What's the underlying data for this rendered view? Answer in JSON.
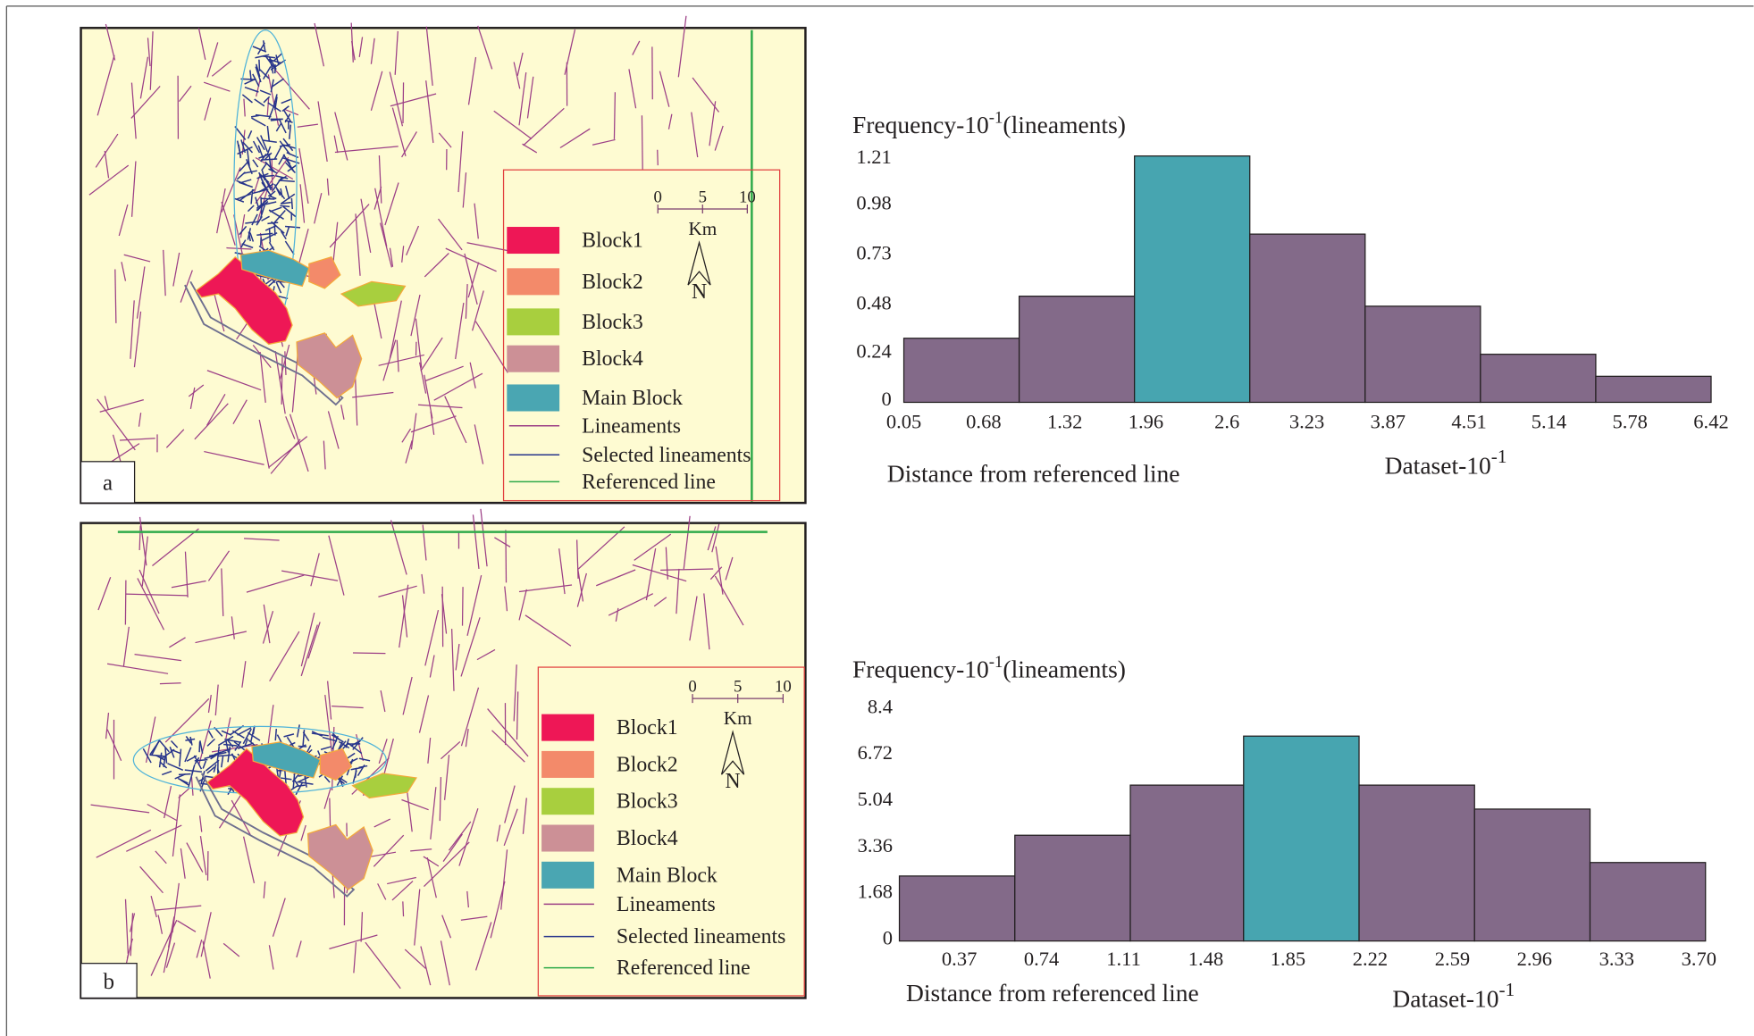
{
  "panels": [
    {
      "label": "a",
      "scale": {
        "ticks": [
          "0",
          "5",
          "10"
        ],
        "unit": "Km",
        "north": "N"
      },
      "legend": [
        "Block1",
        "Block2",
        "Block3",
        "Block4",
        "Main Block",
        "Lineaments",
        "Selected lineaments",
        "Referenced line"
      ]
    },
    {
      "label": "b",
      "scale": {
        "ticks": [
          "0",
          "5",
          "10"
        ],
        "unit": "Km",
        "north": "N"
      },
      "legend": [
        "Block1",
        "Block2",
        "Block3",
        "Block4",
        "Main Block",
        "Lineaments",
        "Selected lineaments",
        "Referenced line"
      ]
    }
  ],
  "chart_data": [
    {
      "type": "histogram",
      "y_label": "Frequency-10",
      "y_label_exponent": "-1",
      "y_label_suffix": "(lineaments)",
      "x_label": "Distance from referenced line",
      "x_note": "Dataset-10",
      "x_note_exponent": "-1",
      "bins": [
        0.05,
        0.96,
        1.87,
        2.78,
        3.69,
        4.6,
        5.51,
        6.42
      ],
      "values": [
        0.32,
        0.53,
        1.23,
        0.84,
        0.48,
        0.24,
        0.13
      ],
      "colors": [
        "#836a89",
        "#836a89",
        "#47a5b0",
        "#836a89",
        "#836a89",
        "#836a89",
        "#836a89"
      ],
      "xlim": [
        0.05,
        6.42
      ],
      "xticks": [
        0.05,
        0.68,
        1.32,
        1.96,
        2.6,
        3.23,
        3.87,
        4.51,
        5.14,
        5.78,
        6.42
      ],
      "ylim": [
        0,
        1.25
      ],
      "yticks": [
        0,
        0.24,
        0.48,
        0.73,
        0.98,
        1.21
      ]
    },
    {
      "type": "histogram",
      "y_label": "Frequency-10",
      "y_label_exponent": "-1",
      "y_label_suffix": "(lineaments)",
      "x_label": "Distance from referenced line",
      "x_note": "Dataset-10",
      "x_note_exponent": "-1",
      "bins": [
        0.1,
        0.62,
        1.14,
        1.65,
        2.17,
        2.69,
        3.21,
        3.73
      ],
      "values": [
        2.36,
        3.84,
        5.66,
        7.44,
        5.66,
        4.79,
        2.85
      ],
      "colors": [
        "#836a89",
        "#836a89",
        "#836a89",
        "#47a5b0",
        "#836a89",
        "#836a89",
        "#836a89"
      ],
      "xlim": [
        0.1,
        3.73
      ],
      "xticks": [
        0.37,
        0.74,
        1.11,
        1.48,
        1.85,
        2.22,
        2.59,
        2.96,
        3.33,
        {
          "value": 3.7,
          "label": "3.70"
        }
      ],
      "ylim": [
        0,
        8.4
      ],
      "yticks": [
        0,
        1.68,
        3.36,
        5.04,
        6.72,
        8.4
      ]
    }
  ]
}
